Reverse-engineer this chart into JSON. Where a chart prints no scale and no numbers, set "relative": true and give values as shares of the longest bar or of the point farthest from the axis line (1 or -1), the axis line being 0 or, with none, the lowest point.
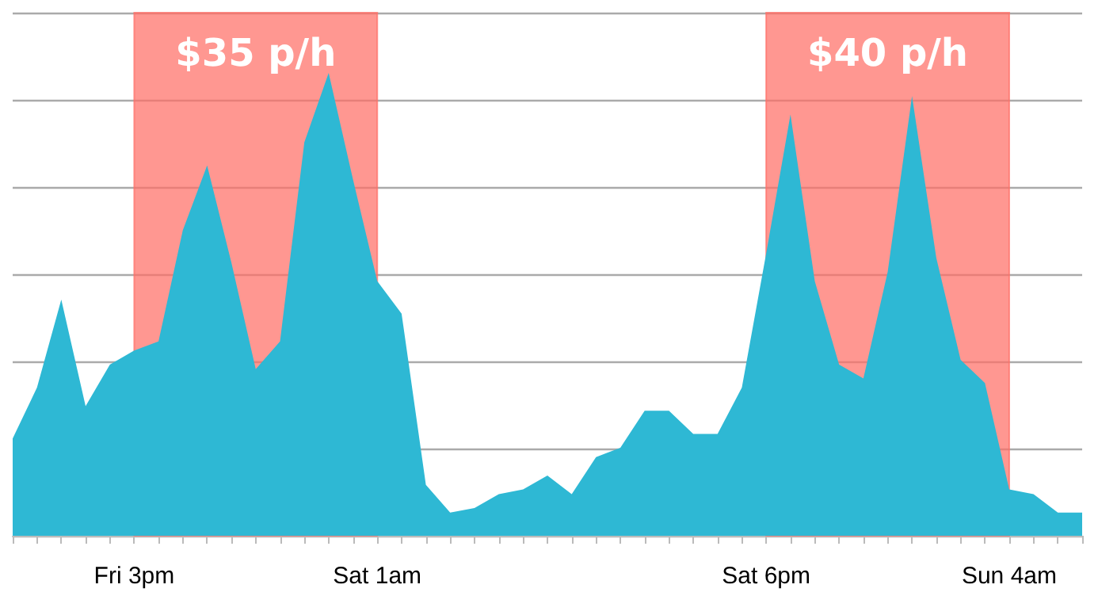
{
  "chart_data": {
    "type": "area",
    "relative": true,
    "grid": "y",
    "color": "#2eb8d4",
    "categories": [
      null,
      null,
      null,
      null,
      null,
      "Fri 3pm",
      null,
      null,
      null,
      null,
      null,
      null,
      null,
      null,
      null,
      "Sat 1am",
      null,
      null,
      null,
      null,
      null,
      null,
      null,
      null,
      null,
      null,
      null,
      null,
      null,
      null,
      null,
      "Sat 6pm",
      null,
      null,
      null,
      null,
      null,
      null,
      null,
      null,
      null,
      "Sun 4am",
      null,
      null,
      null
    ],
    "values": [
      0.21,
      0.32,
      0.51,
      0.28,
      0.37,
      0.4,
      0.42,
      0.66,
      0.8,
      0.59,
      0.36,
      0.42,
      0.85,
      1,
      0.77,
      0.55,
      0.48,
      0.11,
      0.05,
      0.06,
      0.09,
      0.1,
      0.13,
      0.09,
      0.17,
      0.19,
      0.27,
      0.27,
      0.22,
      0.22,
      0.32,
      0.61,
      0.91,
      0.55,
      0.37,
      0.34,
      0.57,
      0.95,
      0.6,
      0.38,
      0.33,
      0.1,
      0.09,
      0.05,
      0.05
    ],
    "bands": [
      {
        "axis": "x",
        "from": "Fri 3pm",
        "to": "Sat 1am",
        "label": "$35 p/h",
        "color": "#ff6f66"
      },
      {
        "axis": "x",
        "from": "Sat 6pm",
        "to": "Sun 4am",
        "label": "$40 p/h",
        "color": "#ff6f66"
      }
    ]
  }
}
